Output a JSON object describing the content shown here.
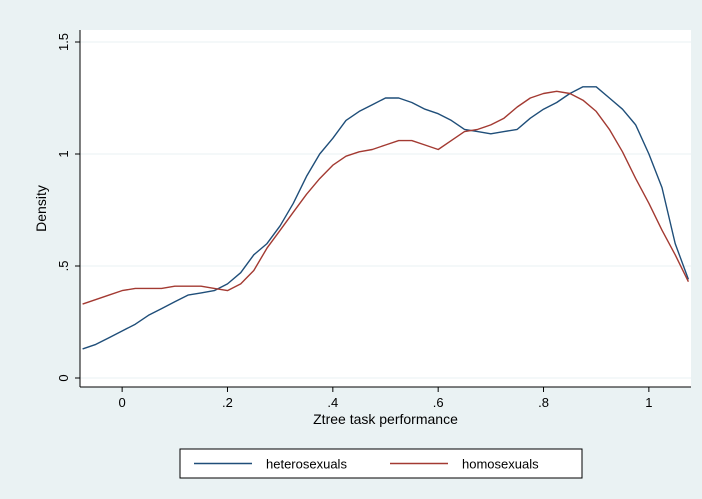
{
  "chart_data": {
    "type": "line",
    "xlabel": "Ztree task performance",
    "ylabel": "Density",
    "xlim": [
      -0.08,
      1.08
    ],
    "ylim": [
      0,
      1.5
    ],
    "xticks": [
      {
        "value": 0,
        "label": "0"
      },
      {
        "value": 0.2,
        "label": ".2"
      },
      {
        "value": 0.4,
        "label": ".4"
      },
      {
        "value": 0.6,
        "label": ".6"
      },
      {
        "value": 0.8,
        "label": ".8"
      },
      {
        "value": 1,
        "label": "1"
      }
    ],
    "yticks": [
      {
        "value": 0,
        "label": "0"
      },
      {
        "value": 0.5,
        "label": ".5"
      },
      {
        "value": 1,
        "label": "1"
      },
      {
        "value": 1.5,
        "label": "1.5"
      }
    ],
    "grid": true,
    "legend_position": "bottom",
    "series": [
      {
        "name": "heterosexuals",
        "color": "#1f4e79",
        "x": [
          -0.075,
          -0.05,
          -0.025,
          0,
          0.025,
          0.05,
          0.075,
          0.1,
          0.125,
          0.15,
          0.175,
          0.2,
          0.225,
          0.25,
          0.275,
          0.3,
          0.325,
          0.35,
          0.375,
          0.4,
          0.425,
          0.45,
          0.475,
          0.5,
          0.525,
          0.55,
          0.575,
          0.6,
          0.625,
          0.65,
          0.675,
          0.7,
          0.725,
          0.75,
          0.775,
          0.8,
          0.825,
          0.85,
          0.875,
          0.9,
          0.925,
          0.95,
          0.975,
          1,
          1.025,
          1.05,
          1.075
        ],
        "y": [
          0.13,
          0.15,
          0.18,
          0.21,
          0.24,
          0.28,
          0.31,
          0.34,
          0.37,
          0.38,
          0.39,
          0.42,
          0.47,
          0.55,
          0.6,
          0.68,
          0.78,
          0.9,
          1.0,
          1.07,
          1.15,
          1.19,
          1.22,
          1.25,
          1.25,
          1.23,
          1.2,
          1.18,
          1.15,
          1.11,
          1.1,
          1.09,
          1.1,
          1.11,
          1.16,
          1.2,
          1.23,
          1.27,
          1.3,
          1.3,
          1.25,
          1.2,
          1.13,
          1.0,
          0.85,
          0.6,
          0.44
        ]
      },
      {
        "name": "homosexuals",
        "color": "#a33a32",
        "x": [
          -0.075,
          -0.05,
          -0.025,
          0,
          0.025,
          0.05,
          0.075,
          0.1,
          0.125,
          0.15,
          0.175,
          0.2,
          0.225,
          0.25,
          0.275,
          0.3,
          0.325,
          0.35,
          0.375,
          0.4,
          0.425,
          0.45,
          0.475,
          0.5,
          0.525,
          0.55,
          0.575,
          0.6,
          0.625,
          0.65,
          0.675,
          0.7,
          0.725,
          0.75,
          0.775,
          0.8,
          0.825,
          0.85,
          0.875,
          0.9,
          0.925,
          0.95,
          0.975,
          1,
          1.025,
          1.05,
          1.075
        ],
        "y": [
          0.33,
          0.35,
          0.37,
          0.39,
          0.4,
          0.4,
          0.4,
          0.41,
          0.41,
          0.41,
          0.4,
          0.39,
          0.42,
          0.48,
          0.58,
          0.66,
          0.74,
          0.82,
          0.89,
          0.95,
          0.99,
          1.01,
          1.02,
          1.04,
          1.06,
          1.06,
          1.04,
          1.02,
          1.06,
          1.1,
          1.11,
          1.13,
          1.16,
          1.21,
          1.25,
          1.27,
          1.28,
          1.27,
          1.24,
          1.19,
          1.11,
          1.01,
          0.89,
          0.78,
          0.66,
          0.55,
          0.43
        ]
      }
    ]
  }
}
